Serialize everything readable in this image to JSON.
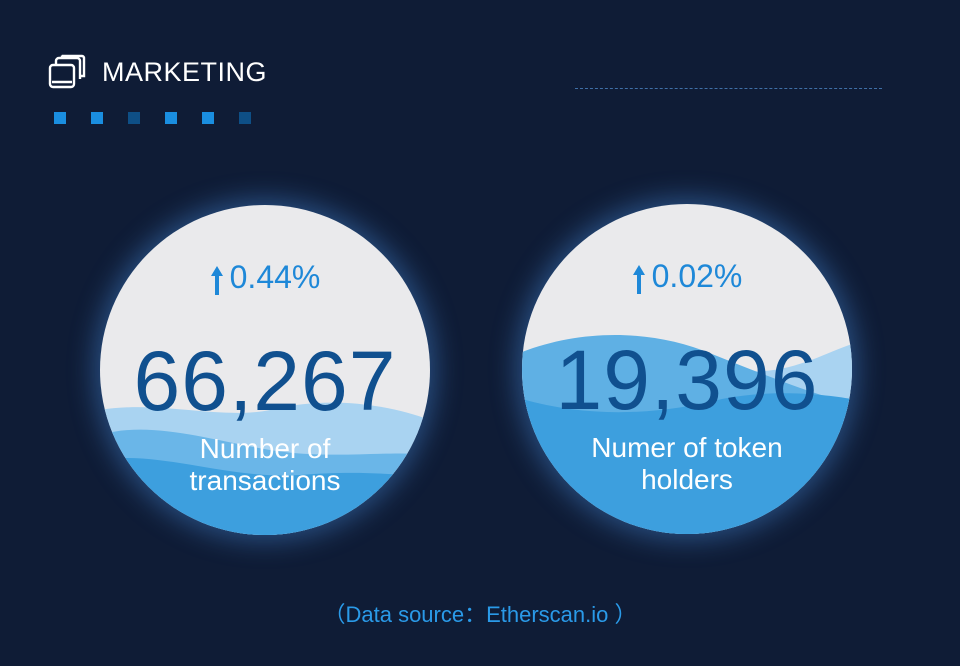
{
  "header": {
    "title": "MARKETING",
    "icon": "stacked-pages-icon"
  },
  "decor": {
    "dot_colors": [
      "#1a8ee0",
      "#1a8ee0",
      "#0e4f86",
      "#1a8ee0",
      "#1a8ee0",
      "#0e4f86"
    ]
  },
  "stats": [
    {
      "change": "0.44%",
      "value": "66,267",
      "label_line1": "Number of",
      "label_line2": "transactions",
      "fill_level": 0.5
    },
    {
      "change": "0.02%",
      "value": "19,396",
      "label_line1": "Numer of token",
      "label_line2": "holders",
      "fill_level": 0.75
    }
  ],
  "footer": {
    "source": "（Data source：Etherscan.io ）"
  },
  "colors": {
    "background": "#0f1c36",
    "accent": "#1e88d8",
    "number": "#10508f",
    "circle_bg": "#eaeaec"
  }
}
